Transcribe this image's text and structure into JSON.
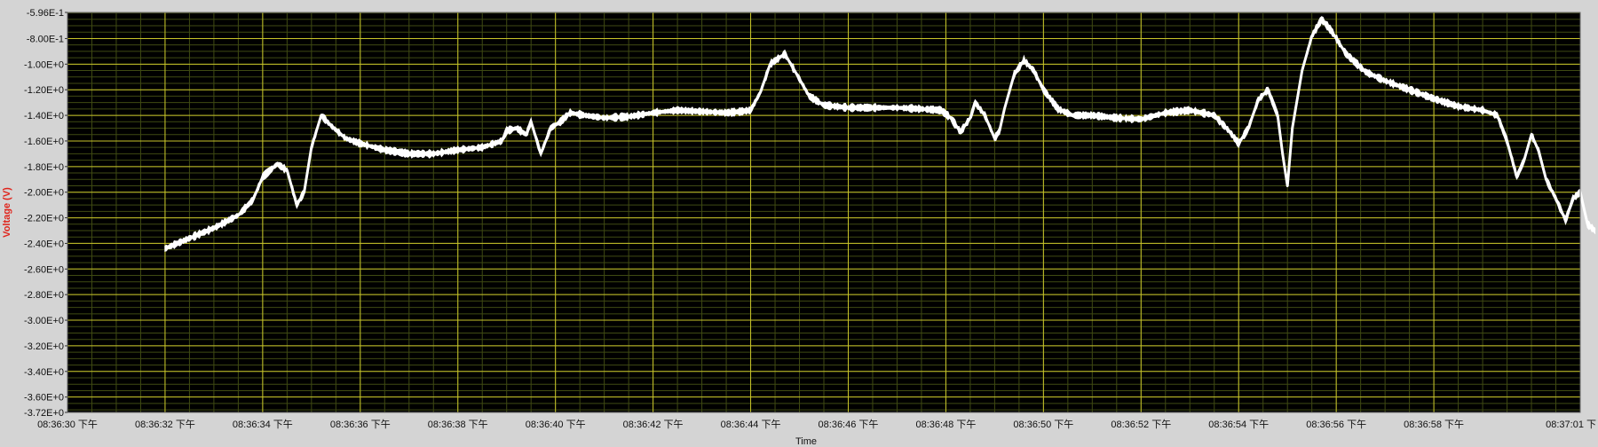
{
  "colors": {
    "frame_bg": "#d4d4d4",
    "plot_bg": "#000000",
    "major_grid": "#c9c52a",
    "minor_grid": "#3f4a13",
    "trace": "#ffffff",
    "ylabel": "#e0241b"
  },
  "chart_data": {
    "type": "line",
    "title": "",
    "xlabel": "Time",
    "ylabel": "Voltage (V)",
    "grid": true,
    "xlim": [
      0,
      31
    ],
    "ylim": [
      -3.72,
      -0.596
    ],
    "x_tick_labels": [
      "08:36:30 下午",
      "08:36:32 下午",
      "08:36:34 下午",
      "08:36:36 下午",
      "08:36:38 下午",
      "08:36:40 下午",
      "08:36:42 下午",
      "08:36:44 下午",
      "08:36:46 下午",
      "08:36:48 下午",
      "08:36:50 下午",
      "08:36:52 下午",
      "08:36:54 下午",
      "08:36:56 下午",
      "08:36:58 下午",
      "08:37:01 下"
    ],
    "y_ticks": [
      -0.596,
      -0.8,
      -1.0,
      -1.2,
      -1.4,
      -1.6,
      -1.8,
      -2.0,
      -2.2,
      -2.4,
      -2.6,
      -2.8,
      -3.0,
      -3.2,
      -3.4,
      -3.6,
      -3.72
    ],
    "y_tick_labels": [
      "-5.96E-1",
      "-8.00E-1",
      "-1.00E+0",
      "-1.20E+0",
      "-1.40E+0",
      "-1.60E+0",
      "-1.80E+0",
      "-2.00E+0",
      "-2.20E+0",
      "-2.40E+0",
      "-2.60E+0",
      "-2.80E+0",
      "-3.00E+0",
      "-3.20E+0",
      "-3.40E+0",
      "-3.60E+0",
      "-3.72E+0"
    ],
    "series": [
      {
        "noise_band": 0.04,
        "points": [
          [
            2.0,
            -2.44
          ],
          [
            3.0,
            -2.28
          ],
          [
            3.5,
            -2.18
          ],
          [
            3.8,
            -2.06
          ],
          [
            4.0,
            -1.88
          ],
          [
            4.3,
            -1.78
          ],
          [
            4.5,
            -1.83
          ],
          [
            4.7,
            -2.1
          ],
          [
            4.85,
            -2.0
          ],
          [
            5.0,
            -1.65
          ],
          [
            5.2,
            -1.4
          ],
          [
            5.4,
            -1.48
          ],
          [
            5.7,
            -1.58
          ],
          [
            6.0,
            -1.62
          ],
          [
            6.5,
            -1.67
          ],
          [
            7.0,
            -1.7
          ],
          [
            7.5,
            -1.7
          ],
          [
            8.0,
            -1.67
          ],
          [
            8.5,
            -1.65
          ],
          [
            8.9,
            -1.6
          ],
          [
            9.0,
            -1.52
          ],
          [
            9.2,
            -1.5
          ],
          [
            9.4,
            -1.55
          ],
          [
            9.5,
            -1.45
          ],
          [
            9.7,
            -1.7
          ],
          [
            9.8,
            -1.6
          ],
          [
            9.9,
            -1.5
          ],
          [
            10.1,
            -1.45
          ],
          [
            10.3,
            -1.38
          ],
          [
            10.6,
            -1.4
          ],
          [
            11.0,
            -1.42
          ],
          [
            11.5,
            -1.41
          ],
          [
            12.0,
            -1.38
          ],
          [
            12.5,
            -1.36
          ],
          [
            13.0,
            -1.37
          ],
          [
            13.5,
            -1.38
          ],
          [
            13.8,
            -1.37
          ],
          [
            14.0,
            -1.36
          ],
          [
            14.2,
            -1.22
          ],
          [
            14.4,
            -1.0
          ],
          [
            14.7,
            -0.92
          ],
          [
            14.9,
            -1.05
          ],
          [
            15.2,
            -1.25
          ],
          [
            15.5,
            -1.32
          ],
          [
            16.0,
            -1.34
          ],
          [
            16.5,
            -1.34
          ],
          [
            17.0,
            -1.34
          ],
          [
            17.5,
            -1.35
          ],
          [
            17.9,
            -1.36
          ],
          [
            18.1,
            -1.42
          ],
          [
            18.3,
            -1.53
          ],
          [
            18.5,
            -1.42
          ],
          [
            18.6,
            -1.3
          ],
          [
            18.8,
            -1.4
          ],
          [
            19.0,
            -1.58
          ],
          [
            19.1,
            -1.52
          ],
          [
            19.2,
            -1.35
          ],
          [
            19.4,
            -1.08
          ],
          [
            19.6,
            -0.97
          ],
          [
            19.8,
            -1.05
          ],
          [
            20.0,
            -1.2
          ],
          [
            20.3,
            -1.35
          ],
          [
            20.6,
            -1.4
          ],
          [
            21.0,
            -1.4
          ],
          [
            21.5,
            -1.42
          ],
          [
            22.0,
            -1.43
          ],
          [
            22.5,
            -1.38
          ],
          [
            23.0,
            -1.36
          ],
          [
            23.5,
            -1.4
          ],
          [
            23.8,
            -1.52
          ],
          [
            24.0,
            -1.62
          ],
          [
            24.2,
            -1.5
          ],
          [
            24.4,
            -1.28
          ],
          [
            24.6,
            -1.2
          ],
          [
            24.8,
            -1.4
          ],
          [
            24.9,
            -1.7
          ],
          [
            25.0,
            -1.95
          ],
          [
            25.1,
            -1.5
          ],
          [
            25.3,
            -1.05
          ],
          [
            25.5,
            -0.78
          ],
          [
            25.7,
            -0.65
          ],
          [
            25.9,
            -0.74
          ],
          [
            26.2,
            -0.92
          ],
          [
            26.6,
            -1.06
          ],
          [
            27.0,
            -1.13
          ],
          [
            27.5,
            -1.2
          ],
          [
            28.0,
            -1.27
          ],
          [
            28.5,
            -1.33
          ],
          [
            29.0,
            -1.36
          ],
          [
            29.3,
            -1.4
          ],
          [
            29.5,
            -1.6
          ],
          [
            29.7,
            -1.88
          ],
          [
            29.85,
            -1.75
          ],
          [
            30.0,
            -1.55
          ],
          [
            30.15,
            -1.68
          ],
          [
            30.3,
            -1.9
          ],
          [
            30.5,
            -2.05
          ],
          [
            30.7,
            -2.22
          ],
          [
            30.85,
            -2.05
          ],
          [
            31.0,
            -2.0
          ],
          [
            31.15,
            -2.25
          ],
          [
            31.3,
            -2.3
          ]
        ]
      }
    ]
  }
}
